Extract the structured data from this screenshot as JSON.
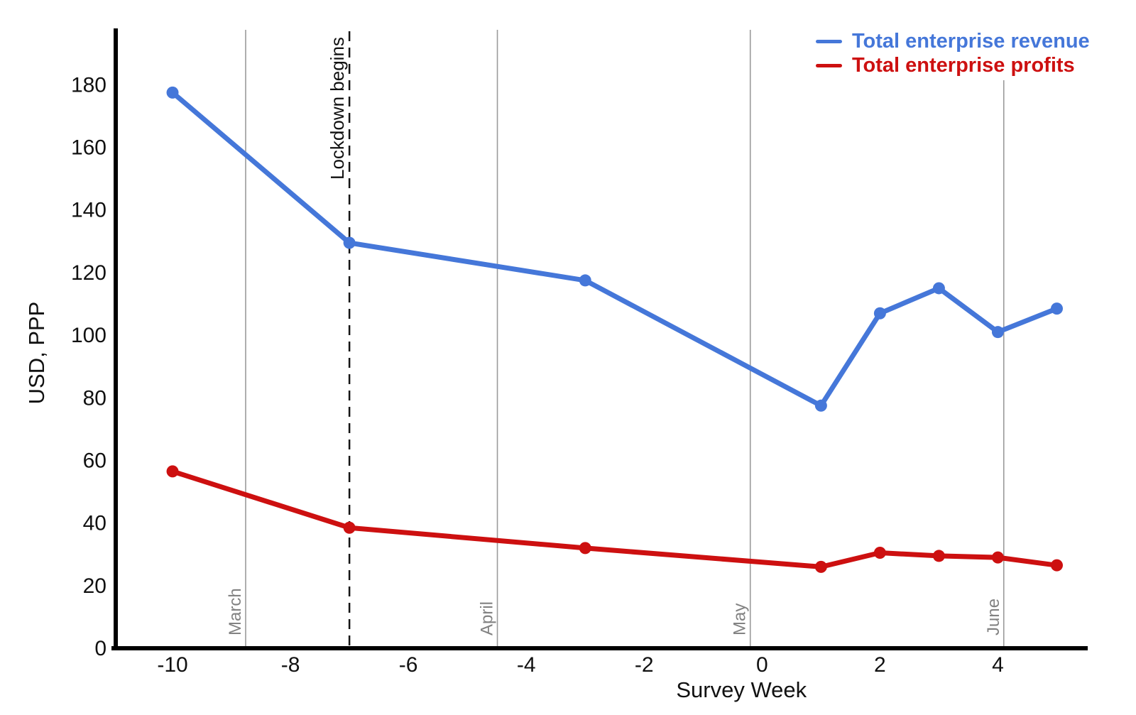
{
  "chart_data": {
    "type": "line",
    "title": "",
    "xlabel": "Survey Week",
    "ylabel": "USD, PPP",
    "xlim": [
      -11,
      5.5
    ],
    "ylim": [
      0,
      198
    ],
    "x_ticks": [
      -10,
      -8,
      -6,
      -4,
      -2,
      0,
      2,
      4
    ],
    "y_ticks": [
      0,
      20,
      40,
      60,
      80,
      100,
      120,
      140,
      160,
      180
    ],
    "grid": "vertical month gridlines only",
    "legend_position": "top-right",
    "series": [
      {
        "name": "Total enterprise revenue",
        "color": "#4577d9",
        "x": [
          -10,
          -7,
          -3,
          1,
          2,
          3,
          4,
          5
        ],
        "values": [
          177.5,
          129.5,
          117.5,
          77.5,
          107,
          115,
          101,
          108.5
        ]
      },
      {
        "name": "Total enterprise profits",
        "color": "#cd1010",
        "x": [
          -10,
          -7,
          -3,
          1,
          2,
          3,
          4,
          5
        ],
        "values": [
          56.5,
          38.5,
          32,
          26,
          30.5,
          29.5,
          29,
          26.5
        ]
      }
    ],
    "month_gridlines": [
      {
        "label": "March",
        "x": -8.76
      },
      {
        "label": "April",
        "x": -4.49
      },
      {
        "label": "May",
        "x": -0.2
      },
      {
        "label": "June",
        "x": 4.1
      }
    ],
    "event_line": {
      "label": "Lockdown begins",
      "x": -7,
      "style": "dashed"
    }
  },
  "colors": {
    "gridline": "#9a9a9a",
    "month_label": "#828282",
    "event_line": "#141414",
    "axis": "#000000",
    "tick_label": "#111111"
  }
}
